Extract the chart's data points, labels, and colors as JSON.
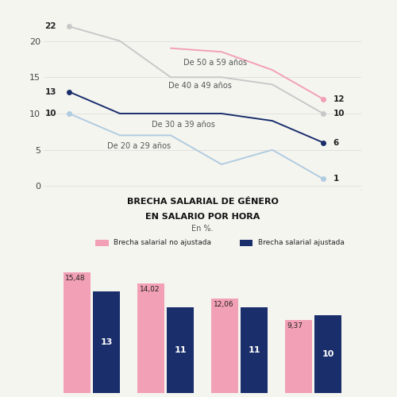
{
  "line_years": [
    2002,
    2006,
    2010,
    2014,
    2018,
    2022
  ],
  "line_50a59_years": [
    2010,
    2014,
    2018,
    2022
  ],
  "line_50a59_vals": [
    19,
    18.5,
    16,
    12
  ],
  "line_40a49_vals": [
    22,
    20,
    15,
    15,
    14,
    10
  ],
  "line_30a39_vals": [
    13,
    10,
    10,
    10,
    9,
    6
  ],
  "line_20a29_vals": [
    10,
    7,
    7,
    3,
    5,
    1
  ],
  "color_50a59": "#f2a0b5",
  "color_40a49": "#c8c8c8",
  "color_30a39": "#1a2e6c",
  "color_20a29": "#b0cce0",
  "line_yticks": [
    0,
    5,
    10,
    15,
    20
  ],
  "line_ylim": [
    -0.5,
    24
  ],
  "line_xlim": [
    2000,
    2025
  ],
  "left_labels": {
    "22": 22,
    "13": 13,
    "10": 10
  },
  "right_labels": {
    "12": 12,
    "10": 10,
    "6": 6,
    "1": 1
  },
  "label_50a59": "De 50 a 59 años",
  "label_40a49": "De 40 a 49 años",
  "label_30a39": "De 30 a 39 años",
  "label_20a29": "De 20 a 29 años",
  "bar_title_line1": "BRECHA SALARIAL DE GÉNERO",
  "bar_title_line2": "EN SALARIO POR HORA",
  "bar_subtitle": "En %.",
  "bar_pink": [
    15.48,
    14.02,
    12.06,
    9.37
  ],
  "bar_navy": [
    13,
    11,
    11,
    10
  ],
  "bar_pink_labels": [
    "15,48",
    "14,02",
    "12,06",
    "9,37"
  ],
  "bar_navy_labels": [
    "13",
    "11",
    "11",
    "10"
  ],
  "bar_pink_color": "#f2a0b5",
  "bar_navy_color": "#1a2e6c",
  "legend_pink": "Brecha salarial no ajustada",
  "legend_navy": "Brecha salarial ajustada",
  "bg_color": "#f5f5f0"
}
